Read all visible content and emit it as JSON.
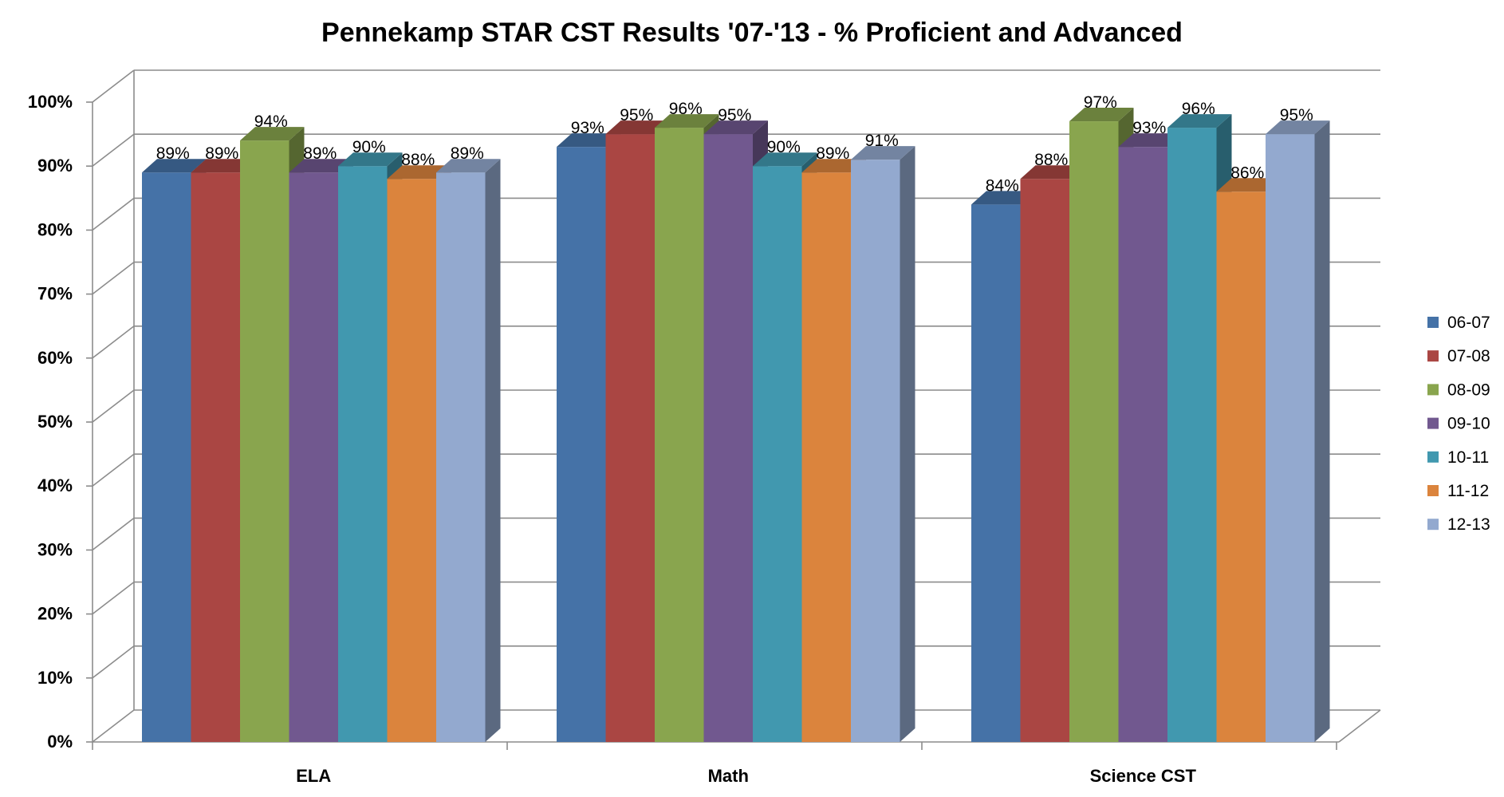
{
  "chart_data": {
    "type": "bar",
    "title": "Pennekamp STAR CST Results '07-'13 - % Proficient and Advanced",
    "xlabel": "",
    "ylabel": "",
    "ylim": [
      0,
      100
    ],
    "y_ticks": [
      "0%",
      "10%",
      "20%",
      "30%",
      "40%",
      "50%",
      "60%",
      "70%",
      "80%",
      "90%",
      "100%"
    ],
    "categories": [
      "ELA",
      "Math",
      "Science CST"
    ],
    "series": [
      {
        "name": "06-07",
        "color": "#4572A7",
        "values": [
          89,
          93,
          84
        ],
        "labels": [
          "89%",
          "93%",
          "84%"
        ]
      },
      {
        "name": "07-08",
        "color": "#AA4643",
        "values": [
          89,
          95,
          88
        ],
        "labels": [
          "89%",
          "95%",
          "88%"
        ]
      },
      {
        "name": "08-09",
        "color": "#89A54E",
        "values": [
          94,
          96,
          97
        ],
        "labels": [
          "94%",
          "96%",
          "97%"
        ]
      },
      {
        "name": "09-10",
        "color": "#71588F",
        "values": [
          89,
          95,
          93
        ],
        "labels": [
          "89%",
          "95%",
          "93%"
        ]
      },
      {
        "name": "10-11",
        "color": "#4198AF",
        "values": [
          90,
          90,
          96
        ],
        "labels": [
          "90%",
          "90%",
          "96%"
        ]
      },
      {
        "name": "11-12",
        "color": "#DB843D",
        "values": [
          88,
          89,
          86
        ],
        "labels": [
          "88%",
          "89%",
          "86%"
        ]
      },
      {
        "name": "12-13",
        "color": "#93A9CF",
        "values": [
          89,
          91,
          95
        ],
        "labels": [
          "89%",
          "91%",
          "95%"
        ]
      }
    ],
    "legend_position": "right",
    "grid": true,
    "style": "3d-clustered-column"
  }
}
